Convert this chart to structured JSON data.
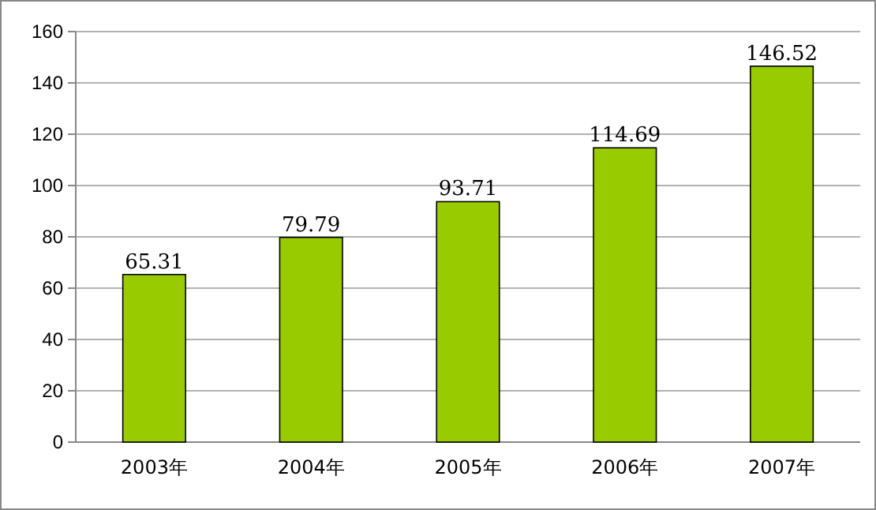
{
  "chart_data": {
    "type": "bar",
    "categories": [
      "2003年",
      "2004年",
      "2005年",
      "2006年",
      "2007年"
    ],
    "values": [
      65.31,
      79.79,
      93.71,
      114.69,
      146.52
    ],
    "color": "#99cc00",
    "ylim": [
      0,
      160
    ],
    "yticks": [
      0,
      20,
      40,
      60,
      80,
      100,
      120,
      140,
      160
    ],
    "grid": "y",
    "data_labels": true
  }
}
